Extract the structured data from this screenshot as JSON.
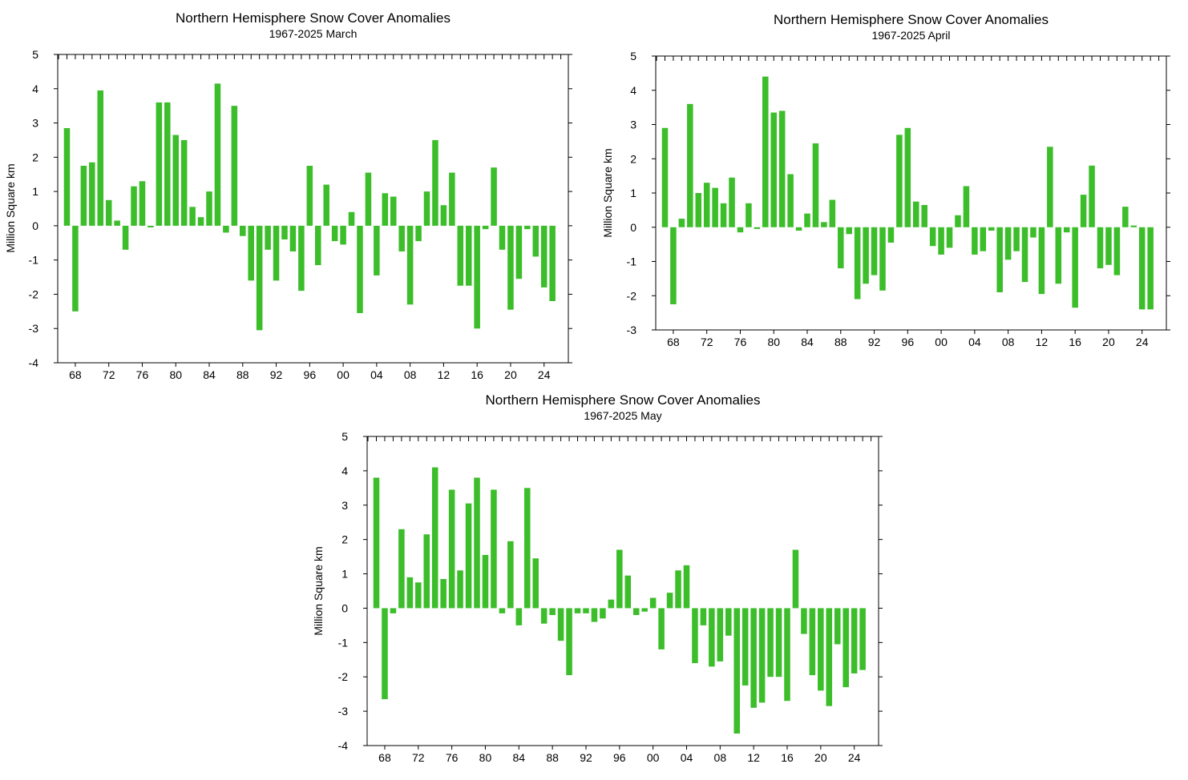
{
  "chart_data": [
    {
      "id": "march",
      "type": "bar",
      "title": "Northern Hemisphere Snow Cover Anomalies",
      "subtitle": "1967-2025 March",
      "ylabel": "Million Square km",
      "xlabel": "",
      "ylim": [
        -4,
        5
      ],
      "yticks": [
        "-4",
        "-3",
        "-2",
        "-1",
        "0",
        "1",
        "2",
        "3",
        "4",
        "5"
      ],
      "xtick_labels": [
        "68",
        "72",
        "76",
        "80",
        "84",
        "88",
        "92",
        "96",
        "00",
        "04",
        "08",
        "12",
        "16",
        "20",
        "24"
      ],
      "bar_color": "#3cbd2a",
      "grid": false,
      "x": [
        1967,
        1968,
        1969,
        1970,
        1971,
        1972,
        1973,
        1974,
        1975,
        1976,
        1977,
        1978,
        1979,
        1980,
        1981,
        1982,
        1983,
        1984,
        1985,
        1986,
        1987,
        1988,
        1989,
        1990,
        1991,
        1992,
        1993,
        1994,
        1995,
        1996,
        1997,
        1998,
        1999,
        2000,
        2001,
        2002,
        2003,
        2004,
        2005,
        2006,
        2007,
        2008,
        2009,
        2010,
        2011,
        2012,
        2013,
        2014,
        2015,
        2016,
        2017,
        2018,
        2019,
        2020,
        2021,
        2022,
        2023,
        2024,
        2025
      ],
      "values": [
        2.85,
        -2.5,
        1.75,
        1.85,
        3.95,
        0.75,
        0.15,
        -0.7,
        1.15,
        1.3,
        -0.05,
        3.6,
        3.6,
        2.65,
        2.5,
        0.55,
        0.25,
        1.0,
        4.15,
        -0.2,
        3.5,
        -0.3,
        -1.6,
        -3.05,
        -0.7,
        -1.6,
        -0.4,
        -0.75,
        -1.9,
        1.75,
        -1.15,
        1.2,
        -0.45,
        -0.55,
        0.4,
        -2.55,
        1.55,
        -1.45,
        0.95,
        0.85,
        -0.75,
        -2.3,
        -0.45,
        1.0,
        2.5,
        0.6,
        1.55,
        -1.75,
        -1.75,
        -3.0,
        -0.1,
        1.7,
        -0.7,
        -2.45,
        -1.55,
        -0.1,
        -0.9,
        -1.8,
        -2.2
      ]
    },
    {
      "id": "april",
      "type": "bar",
      "title": "Northern Hemisphere Snow Cover Anomalies",
      "subtitle": "1967-2025 April",
      "ylabel": "Million Square km",
      "xlabel": "",
      "ylim": [
        -3,
        5
      ],
      "yticks": [
        "-3",
        "-2",
        "-1",
        "0",
        "1",
        "2",
        "3",
        "4",
        "5"
      ],
      "xtick_labels": [
        "68",
        "72",
        "76",
        "80",
        "84",
        "88",
        "92",
        "96",
        "00",
        "04",
        "08",
        "12",
        "16",
        "20",
        "24"
      ],
      "bar_color": "#3cbd2a",
      "grid": false,
      "x": [
        1967,
        1968,
        1969,
        1970,
        1971,
        1972,
        1973,
        1974,
        1975,
        1976,
        1977,
        1978,
        1979,
        1980,
        1981,
        1982,
        1983,
        1984,
        1985,
        1986,
        1987,
        1988,
        1989,
        1990,
        1991,
        1992,
        1993,
        1994,
        1995,
        1996,
        1997,
        1998,
        1999,
        2000,
        2001,
        2002,
        2003,
        2004,
        2005,
        2006,
        2007,
        2008,
        2009,
        2010,
        2011,
        2012,
        2013,
        2014,
        2015,
        2016,
        2017,
        2018,
        2019,
        2020,
        2021,
        2022,
        2023,
        2024,
        2025
      ],
      "values": [
        2.9,
        -2.25,
        0.25,
        3.6,
        1.0,
        1.3,
        1.15,
        0.7,
        1.45,
        -0.15,
        0.7,
        -0.05,
        4.4,
        3.35,
        3.4,
        1.55,
        -0.1,
        0.4,
        2.45,
        0.15,
        0.8,
        -1.2,
        -0.2,
        -2.1,
        -1.65,
        -1.4,
        -1.85,
        -0.45,
        2.7,
        2.9,
        0.75,
        0.65,
        -0.55,
        -0.8,
        -0.6,
        0.35,
        1.2,
        -0.8,
        -0.7,
        -0.1,
        -1.9,
        -0.95,
        -0.7,
        -1.6,
        -0.3,
        -1.95,
        2.35,
        -1.65,
        -0.15,
        -2.35,
        0.95,
        1.8,
        -1.2,
        -1.1,
        -1.4,
        0.6,
        0.05,
        -2.4,
        -2.4
      ]
    },
    {
      "id": "may",
      "type": "bar",
      "title": "Northern Hemisphere Snow Cover Anomalies",
      "subtitle": "1967-2025 May",
      "ylabel": "Million Square km",
      "xlabel": "",
      "ylim": [
        -4,
        5
      ],
      "yticks": [
        "-4",
        "-3",
        "-2",
        "-1",
        "0",
        "1",
        "2",
        "3",
        "4",
        "5"
      ],
      "xtick_labels": [
        "68",
        "72",
        "76",
        "80",
        "84",
        "88",
        "92",
        "96",
        "00",
        "04",
        "08",
        "12",
        "16",
        "20",
        "24"
      ],
      "bar_color": "#3cbd2a",
      "grid": false,
      "x": [
        1967,
        1968,
        1969,
        1970,
        1971,
        1972,
        1973,
        1974,
        1975,
        1976,
        1977,
        1978,
        1979,
        1980,
        1981,
        1982,
        1983,
        1984,
        1985,
        1986,
        1987,
        1988,
        1989,
        1990,
        1991,
        1992,
        1993,
        1994,
        1995,
        1996,
        1997,
        1998,
        1999,
        2000,
        2001,
        2002,
        2003,
        2004,
        2005,
        2006,
        2007,
        2008,
        2009,
        2010,
        2011,
        2012,
        2013,
        2014,
        2015,
        2016,
        2017,
        2018,
        2019,
        2020,
        2021,
        2022,
        2023,
        2024,
        2025
      ],
      "values": [
        3.8,
        -2.65,
        -0.15,
        2.3,
        0.9,
        0.75,
        2.15,
        4.1,
        0.85,
        3.45,
        1.1,
        3.05,
        3.8,
        1.55,
        3.45,
        -0.15,
        1.95,
        -0.5,
        3.5,
        1.45,
        -0.45,
        -0.2,
        -0.95,
        -1.95,
        -0.15,
        -0.15,
        -0.4,
        -0.3,
        0.25,
        1.7,
        0.95,
        -0.2,
        -0.1,
        0.3,
        -1.2,
        0.45,
        1.1,
        1.25,
        -1.6,
        -0.5,
        -1.7,
        -1.55,
        -0.8,
        -3.65,
        -2.25,
        -2.9,
        -2.75,
        -2.0,
        -2.0,
        -2.7,
        1.7,
        -0.75,
        -1.95,
        -2.4,
        -2.85,
        -1.05,
        -2.3,
        -1.9,
        -1.8
      ]
    }
  ]
}
